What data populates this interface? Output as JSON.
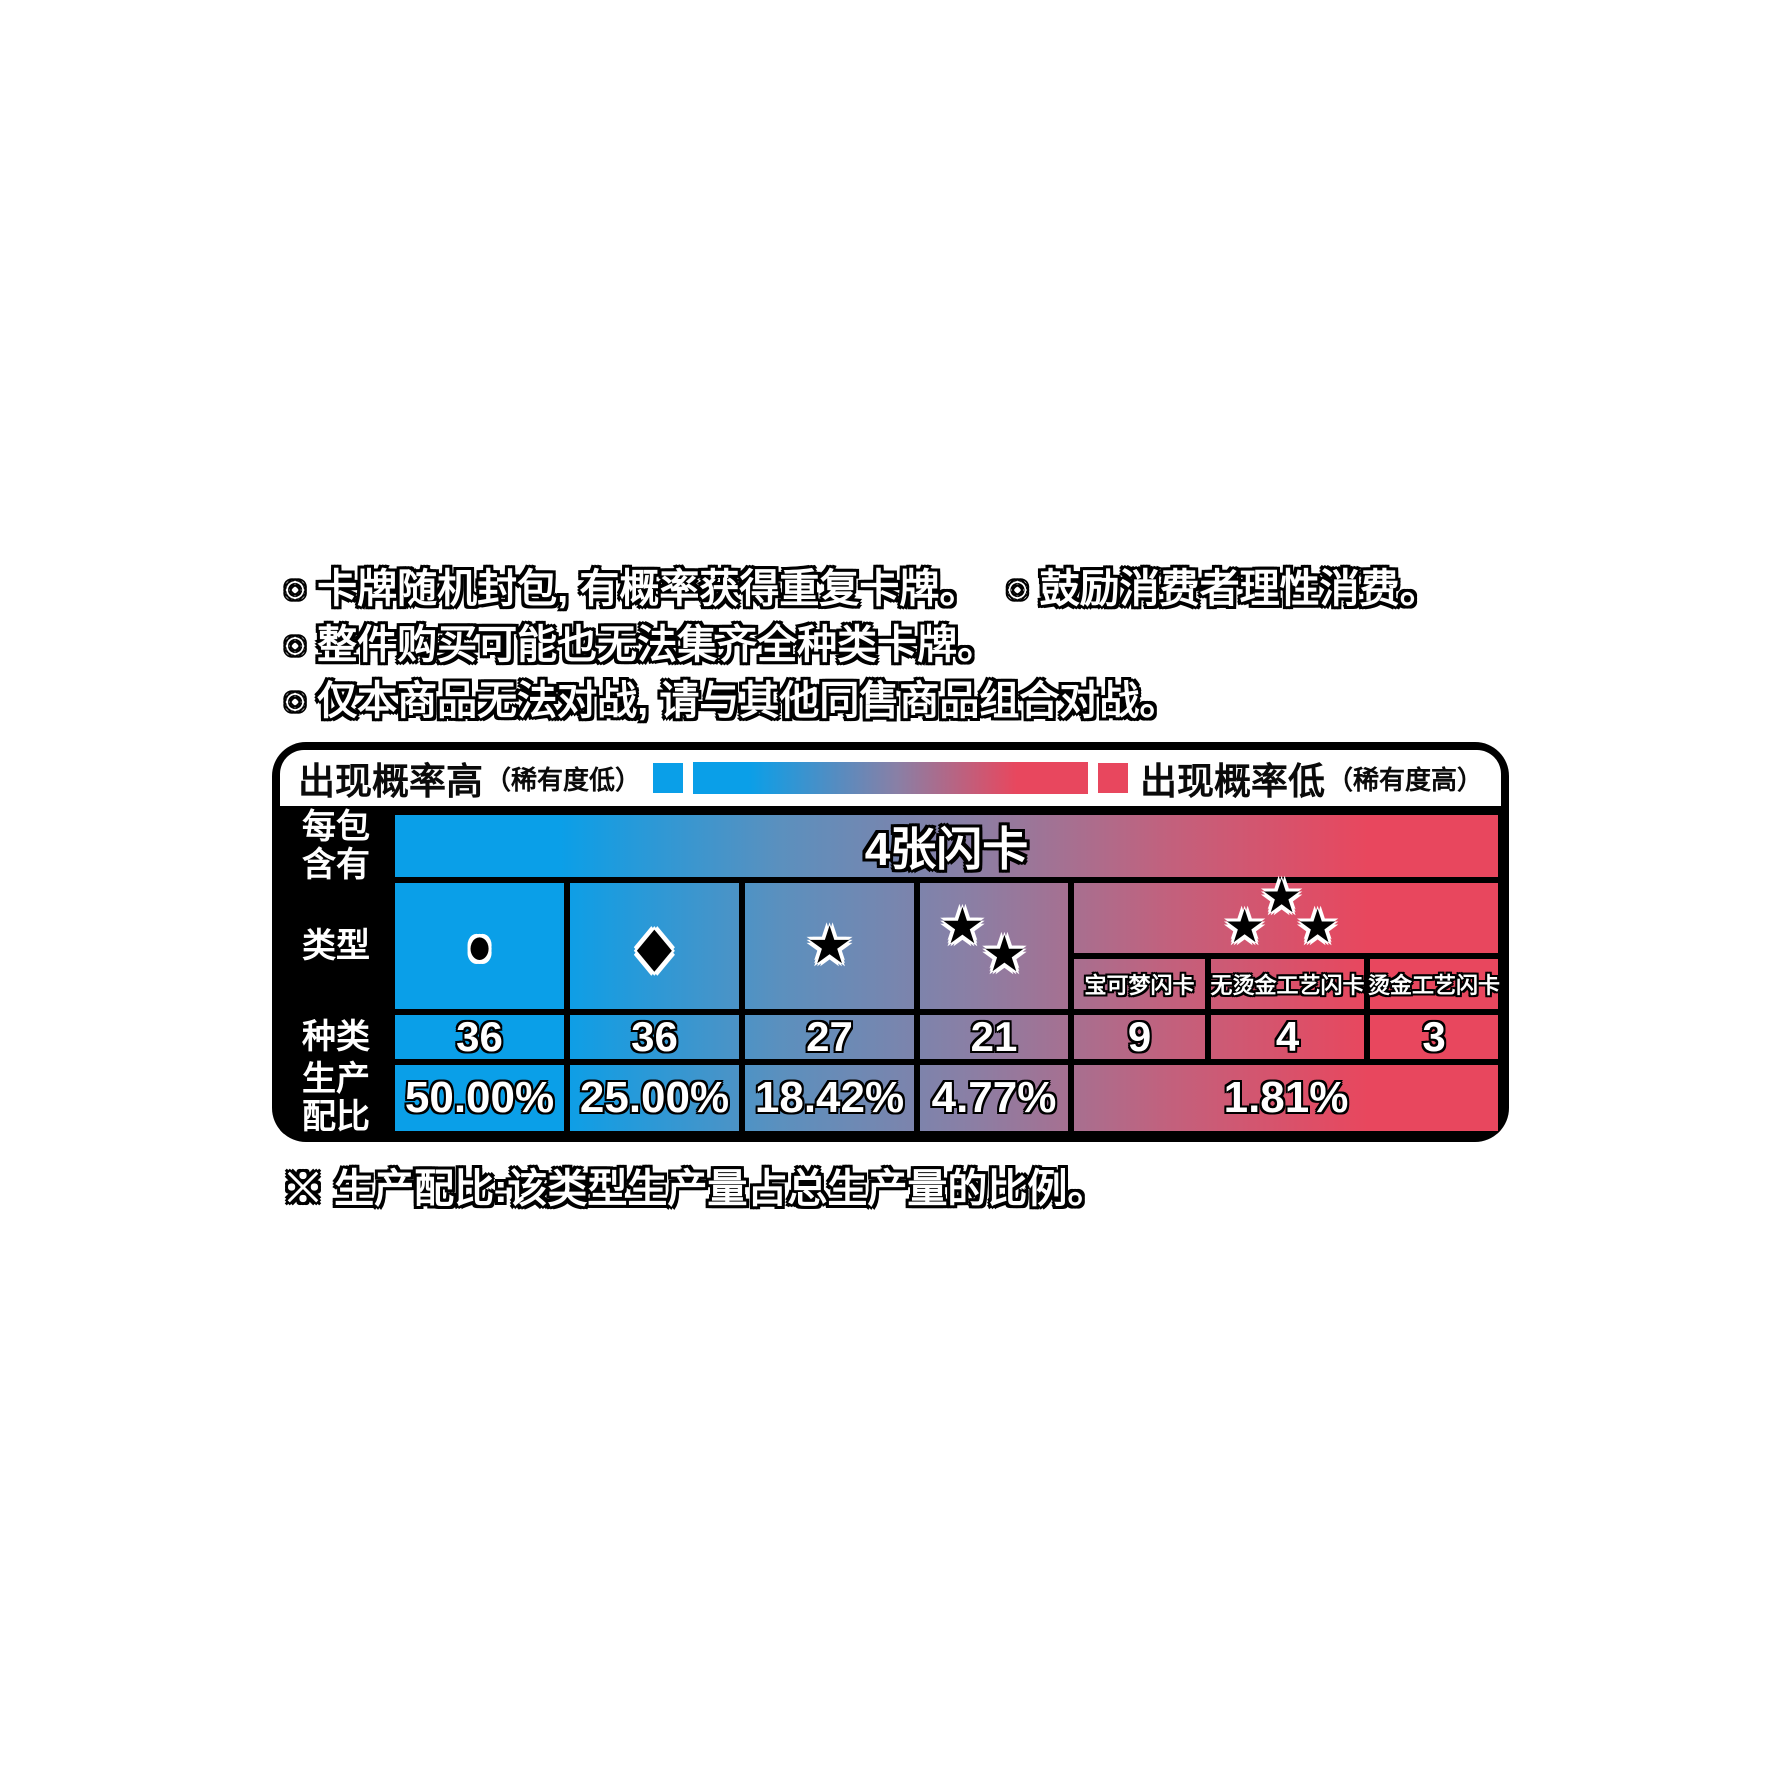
{
  "notices": {
    "bullet": "○",
    "line1_a": "卡牌随机封包, 有概率获得重复卡牌。",
    "line1_b": "鼓励消费者理性消费。",
    "line2": "整件购买可能也无法集齐全种类卡牌。",
    "line3": "仅本商品无法对战, 请与其他同售商品组合对战。"
  },
  "legend": {
    "high_label": "出现概率高",
    "high_note": "（稀有度低）",
    "low_label": "出现概率低",
    "low_note": "（稀有度高）"
  },
  "table": {
    "row_labels": {
      "per_pack": "每包含有",
      "type": "类型",
      "kinds": "种类",
      "ratio": "生产配比"
    },
    "per_pack_value": "4张闪卡",
    "symbols": {
      "circle": "●",
      "diamond": "◆",
      "star": "★"
    },
    "rare_sub_labels": [
      "宝可梦闪卡",
      "无烫金工艺闪卡",
      "烫金工艺闪卡"
    ],
    "kinds_values": [
      "36",
      "36",
      "27",
      "21",
      "9",
      "4",
      "3"
    ],
    "ratio_values": [
      "50.00%",
      "25.00%",
      "18.42%",
      "4.77%"
    ],
    "ratio_rare_combined": "1.81%"
  },
  "colors": {
    "high_probability_blue": "#0A9FE8",
    "low_probability_red": "#E8475E"
  },
  "footnote": "※ 生产配比:该类型生产量占总生产量的比例。"
}
